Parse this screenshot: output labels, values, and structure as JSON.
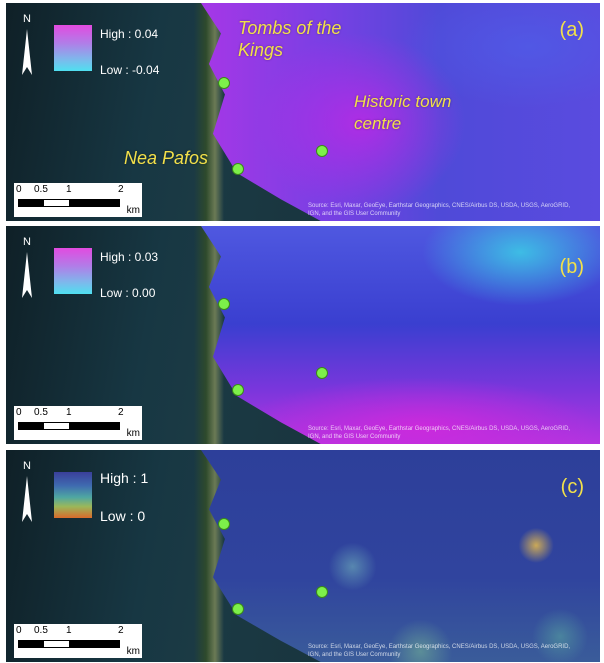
{
  "colors": {
    "label_yellow": "#f2e04a",
    "marker_green": "#7df04a"
  },
  "panels": [
    {
      "letter": "(a)",
      "legend": {
        "high": "High : 0.04",
        "low": "Low : -0.04"
      },
      "places": {
        "tombs": "Tombs of the\nKings",
        "town": "Historic town\ncentre",
        "nea": "Nea Pafos"
      },
      "attribution": "Source: Esri, Maxar, GeoEye, Earthstar Geographics, CNES/Airbus DS, USDA, USGS, AeroGRID, IGN, and the GIS User Community"
    },
    {
      "letter": "(b)",
      "legend": {
        "high": "High : 0.03",
        "low": "Low : 0.00"
      },
      "attribution": "Source: Esri, Maxar, GeoEye, Earthstar Geographics, CNES/Airbus DS, USDA, USGS, AeroGRID, IGN, and the GIS User Community"
    },
    {
      "letter": "(c)",
      "legend": {
        "high": "High : 1",
        "low": "Low : 0"
      },
      "attribution": "Source: Esri, Maxar, GeoEye, Earthstar Geographics, CNES/Airbus DS, USDA, USGS, AeroGRID, IGN, and the GIS User Community"
    }
  ],
  "scale": {
    "ticks": [
      "0",
      "0.5",
      "1",
      "2"
    ],
    "unit": "km"
  },
  "north_label": "N"
}
